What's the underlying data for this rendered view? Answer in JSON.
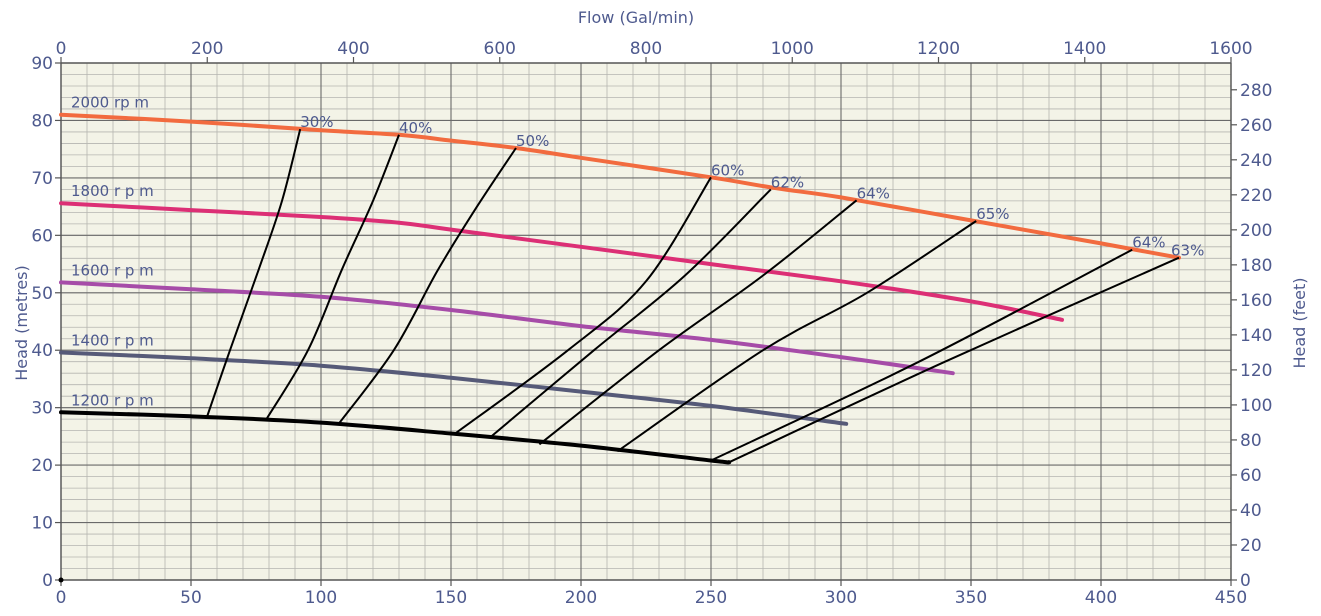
{
  "chart_data": {
    "type": "line",
    "x": {
      "label": "",
      "range": [
        0,
        450
      ],
      "ticks": [
        0,
        50,
        100,
        150,
        200,
        250,
        300,
        350,
        400,
        450
      ]
    },
    "x2": {
      "label": "Flow (Gal/min)",
      "range": [
        0,
        1600
      ],
      "ticks": [
        0,
        200,
        400,
        600,
        800,
        1000,
        1200,
        1400,
        1600
      ]
    },
    "y": {
      "label": "Head (metres)",
      "range": [
        0,
        90
      ],
      "ticks": [
        0,
        10,
        20,
        30,
        40,
        50,
        60,
        70,
        80,
        90
      ]
    },
    "y2": {
      "label": "Head (feet)",
      "range": [
        0,
        295.3
      ],
      "ticks": [
        0,
        20,
        40,
        60,
        80,
        100,
        120,
        140,
        160,
        180,
        200,
        220,
        240,
        260,
        280
      ]
    },
    "grid": true,
    "colors": {
      "background": "#f3f3e7",
      "grid_major": "#6a6a6a",
      "grid_minor": "#b5b5b0",
      "text": "#4e5a8e",
      "efficiency_lines": "#000000"
    },
    "series": [
      {
        "name": "2000 rp m",
        "color": "#f26b3f",
        "points": [
          [
            0,
            81
          ],
          [
            50,
            79.8
          ],
          [
            100,
            78.3
          ],
          [
            130,
            77.5
          ],
          [
            150,
            76.5
          ],
          [
            175,
            75.2
          ],
          [
            200,
            73.5
          ],
          [
            250,
            70.1
          ],
          [
            275,
            68.2
          ],
          [
            300,
            66.6
          ],
          [
            350,
            62.6
          ],
          [
            400,
            58.6
          ],
          [
            430,
            56.1
          ]
        ]
      },
      {
        "name": "1800 r p m",
        "color": "#dc2f75",
        "points": [
          [
            0,
            65.6
          ],
          [
            50,
            64.4
          ],
          [
            100,
            63.2
          ],
          [
            130,
            62.2
          ],
          [
            150,
            61.0
          ],
          [
            200,
            58.0
          ],
          [
            250,
            55.0
          ],
          [
            300,
            52.0
          ],
          [
            350,
            48.5
          ],
          [
            385,
            45.3
          ]
        ]
      },
      {
        "name": "1600 r p m",
        "color": "#a64ca8",
        "points": [
          [
            0,
            51.8
          ],
          [
            50,
            50.6
          ],
          [
            100,
            49.3
          ],
          [
            150,
            47.0
          ],
          [
            200,
            44.2
          ],
          [
            250,
            41.8
          ],
          [
            300,
            38.8
          ],
          [
            343,
            36.0
          ]
        ]
      },
      {
        "name": "1400 r p m",
        "color": "#565a78",
        "points": [
          [
            0,
            39.6
          ],
          [
            50,
            38.6
          ],
          [
            100,
            37.3
          ],
          [
            150,
            35.2
          ],
          [
            200,
            32.8
          ],
          [
            250,
            30.3
          ],
          [
            302,
            27.2
          ]
        ]
      },
      {
        "name": "1200 r p m",
        "color": "#000000",
        "points": [
          [
            0,
            29.2
          ],
          [
            50,
            28.5
          ],
          [
            100,
            27.4
          ],
          [
            150,
            25.5
          ],
          [
            200,
            23.4
          ],
          [
            250,
            20.8
          ],
          [
            257,
            20.5
          ]
        ]
      }
    ],
    "efficiency_lines": [
      {
        "label": "30%",
        "points": [
          [
            56,
            28.2
          ],
          [
            65,
            40
          ],
          [
            76,
            54
          ],
          [
            85,
            66
          ],
          [
            92,
            78.5
          ]
        ]
      },
      {
        "label": "40%",
        "points": [
          [
            79,
            28.0
          ],
          [
            95,
            40
          ],
          [
            108,
            54
          ],
          [
            120,
            66
          ],
          [
            130,
            77.5
          ]
        ]
      },
      {
        "label": "50%",
        "points": [
          [
            107,
            27.3
          ],
          [
            128,
            40
          ],
          [
            145,
            54
          ],
          [
            160,
            65
          ],
          [
            175,
            75.2
          ]
        ]
      },
      {
        "label": "60%",
        "points": [
          [
            151,
            25.3
          ],
          [
            195,
            40
          ],
          [
            225,
            52
          ],
          [
            250,
            70.1
          ]
        ]
      },
      {
        "label": "62%",
        "points": [
          [
            165,
            24.8
          ],
          [
            205,
            40
          ],
          [
            240,
            53
          ],
          [
            273,
            68.0
          ]
        ]
      },
      {
        "label": "64%",
        "points": [
          [
            184,
            23.6
          ],
          [
            230,
            40
          ],
          [
            270,
            53
          ],
          [
            306,
            66.1
          ]
        ]
      },
      {
        "label": "65%",
        "points": [
          [
            214,
            22.4
          ],
          [
            270,
            40
          ],
          [
            310,
            50
          ],
          [
            352,
            62.5
          ]
        ]
      },
      {
        "label": "64%",
        "points": [
          [
            250,
            20.8
          ],
          [
            330,
            38
          ],
          [
            412,
            57.5
          ]
        ]
      },
      {
        "label": "63%",
        "points": [
          [
            257,
            20.5
          ],
          [
            340,
            38
          ],
          [
            430,
            56.1
          ]
        ]
      }
    ]
  }
}
